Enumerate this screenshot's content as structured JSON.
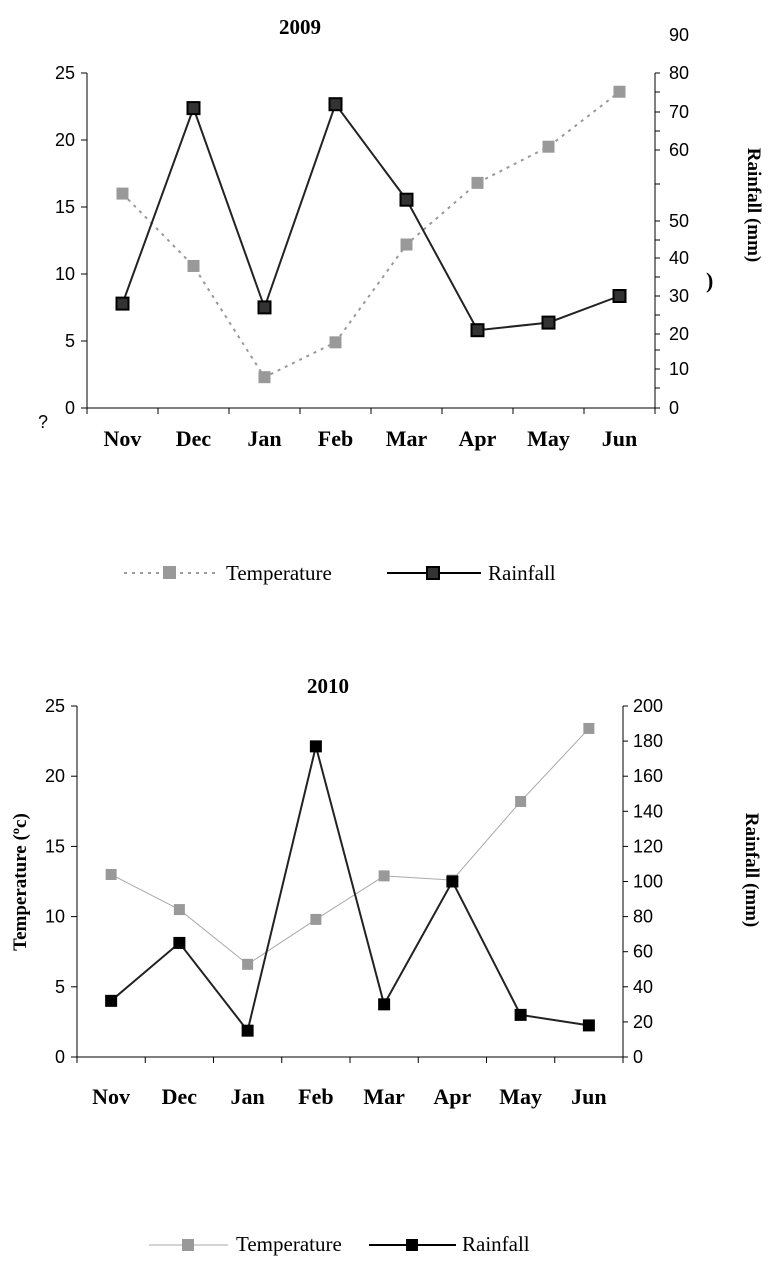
{
  "chart_data": [
    {
      "type": "line",
      "title": "2009",
      "categories": [
        "Nov",
        "Dec",
        "Jan",
        "Feb",
        "Mar",
        "Apr",
        "May",
        "Jun"
      ],
      "left_axis": {
        "label": "",
        "ylim": [
          0,
          25
        ],
        "ticks": [
          "0",
          "5",
          "10",
          "15",
          "20",
          "25"
        ],
        "extra_tick_text": "?"
      },
      "right_axis": {
        "label": "Rainfall (mm)",
        "stray_text": ")",
        "ticks": [
          {
            "text": "0",
            "value": 0
          },
          {
            "text": "10",
            "value": 10
          },
          {
            "text": "20",
            "value": 20
          },
          {
            "text": "30",
            "value": 30
          },
          {
            "text": "40",
            "value": 40
          },
          {
            "text": "50",
            "value": 50
          },
          {
            "text": "60",
            "value": 60
          },
          {
            "text": "70",
            "value": 70
          },
          {
            "text": "80",
            "value": 80
          },
          {
            "text": "90",
            "value": 90
          }
        ]
      },
      "series": [
        {
          "name": "Temperature",
          "axis": "left",
          "color": "#999999",
          "style": "dotted",
          "values": [
            16.0,
            10.6,
            2.3,
            4.9,
            12.2,
            16.8,
            19.5,
            23.6
          ]
        },
        {
          "name": "Rainfall",
          "axis": "right",
          "color": "#000000",
          "style": "solid",
          "values": [
            28,
            71,
            27,
            72,
            53,
            21,
            23,
            30
          ]
        }
      ],
      "legend": {
        "placement": "bottom",
        "items": [
          "Temperature",
          "Rainfall"
        ]
      }
    },
    {
      "type": "line",
      "title": "2010",
      "categories": [
        "Nov",
        "Dec",
        "Jan",
        "Feb",
        "Mar",
        "Apr",
        "May",
        "Jun"
      ],
      "left_axis": {
        "label": "Temperature (ºc)",
        "ylim": [
          0,
          25
        ],
        "ticks": [
          "0",
          "5",
          "10",
          "15",
          "20",
          "25"
        ]
      },
      "right_axis": {
        "label": "Rainfall (mm)",
        "ylim": [
          0,
          200
        ],
        "ticks": [
          "0",
          "20",
          "40",
          "60",
          "80",
          "100",
          "120",
          "140",
          "160",
          "180",
          "200"
        ]
      },
      "series": [
        {
          "name": "Temperature",
          "axis": "left",
          "color": "#aaaaaa",
          "style": "solid",
          "values": [
            13.0,
            10.5,
            6.6,
            9.8,
            12.9,
            12.6,
            18.2,
            23.4
          ]
        },
        {
          "name": "Rainfall",
          "axis": "right",
          "color": "#000000",
          "style": "solid",
          "values": [
            32,
            65,
            15,
            177,
            30,
            100,
            24,
            18
          ]
        }
      ],
      "legend": {
        "placement": "bottom",
        "items": [
          "Temperature",
          "Rainfall"
        ]
      }
    }
  ]
}
